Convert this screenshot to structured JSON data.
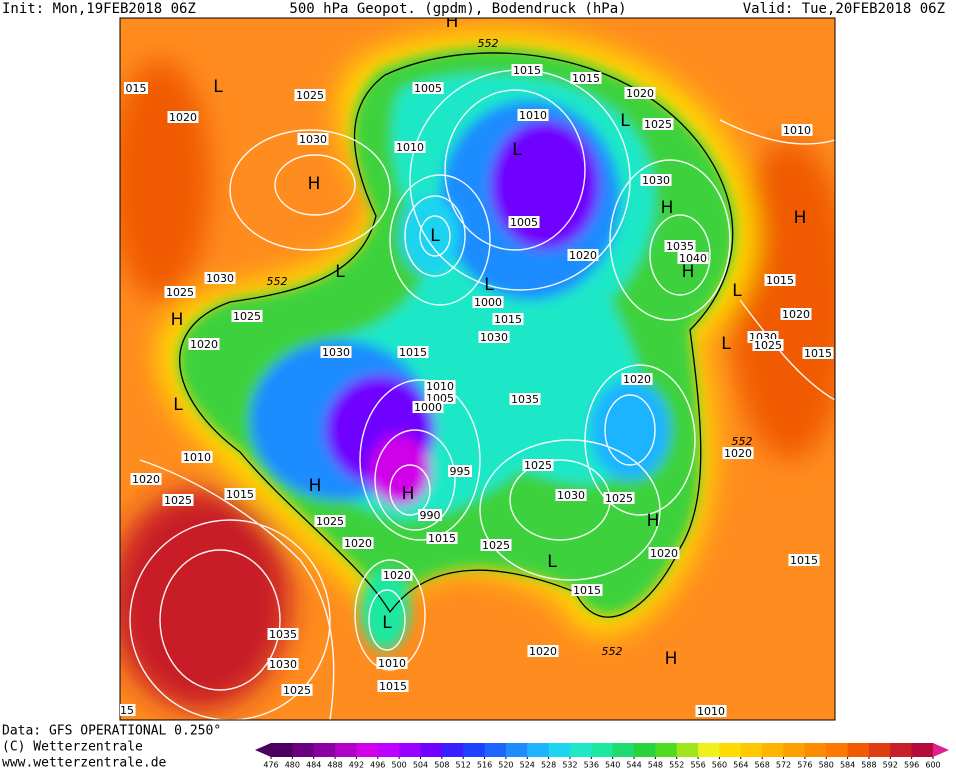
{
  "header": {
    "init": "Init: Mon,19FEB2018 06Z",
    "title": "500 hPa Geopot. (gpdm), Bodendruck (hPa)",
    "valid": "Valid: Tue,20FEB2018 06Z"
  },
  "footer": {
    "data": "Data: GFS OPERATIONAL 0.250°",
    "copyright": "(C) Wetterzentrale",
    "url": "www.wetterzentrale.de"
  },
  "map": {
    "pressure_labels": [
      "1015",
      "1015",
      "1005",
      "1020",
      "1010",
      "1025",
      "1010",
      "1010",
      "1030",
      "1005",
      "1035",
      "1040",
      "1020",
      "1015",
      "1030",
      "1025",
      "1000",
      "1015",
      "1020",
      "1025",
      "1030",
      "1030",
      "1025",
      "1015",
      "1020",
      "1030",
      "1015",
      "1020",
      "1010",
      "1005",
      "1000",
      "1035",
      "1020",
      "995",
      "1010",
      "1020",
      "1025",
      "1025",
      "1015",
      "1030",
      "1025",
      "990",
      "1025",
      "1015",
      "1020",
      "1025",
      "1020",
      "1015",
      "1020",
      "1015",
      "1035",
      "1020",
      "1010",
      "1030",
      "1025",
      "1015",
      "1010",
      "015",
      "1020",
      "1025",
      "1030",
      "15"
    ],
    "centers": [
      "L",
      "H",
      "L",
      "L",
      "H",
      "H",
      "L",
      "H",
      "L",
      "L",
      "L",
      "H",
      "L",
      "H",
      "H",
      "H",
      "L",
      "L",
      "H",
      "H",
      "L"
    ],
    "isoline_labels": [
      "552",
      "552",
      "552",
      "552"
    ]
  },
  "colorbar": {
    "ticks": [
      476,
      480,
      484,
      488,
      492,
      496,
      500,
      504,
      508,
      512,
      516,
      520,
      524,
      528,
      532,
      536,
      540,
      544,
      548,
      552,
      556,
      560,
      564,
      568,
      572,
      576,
      580,
      584,
      588,
      592,
      596,
      600
    ],
    "colors": [
      "#4b0060",
      "#6a0080",
      "#8a00a0",
      "#b000c8",
      "#d000e8",
      "#c000ff",
      "#9a00ff",
      "#7000ff",
      "#3a20ff",
      "#1e40ff",
      "#1e64ff",
      "#1e8cff",
      "#1eb4ff",
      "#1ed4f0",
      "#1ee8c8",
      "#1ee8a0",
      "#1edc70",
      "#28d23c",
      "#50dc1e",
      "#a0e61e",
      "#f0f01e",
      "#ffdc00",
      "#ffc800",
      "#ffb400",
      "#ffa000",
      "#ff8c00",
      "#ff7800",
      "#f05a00",
      "#e03c14",
      "#c81e28",
      "#b40a3c"
    ],
    "overflow_color": "#e0208c"
  }
}
